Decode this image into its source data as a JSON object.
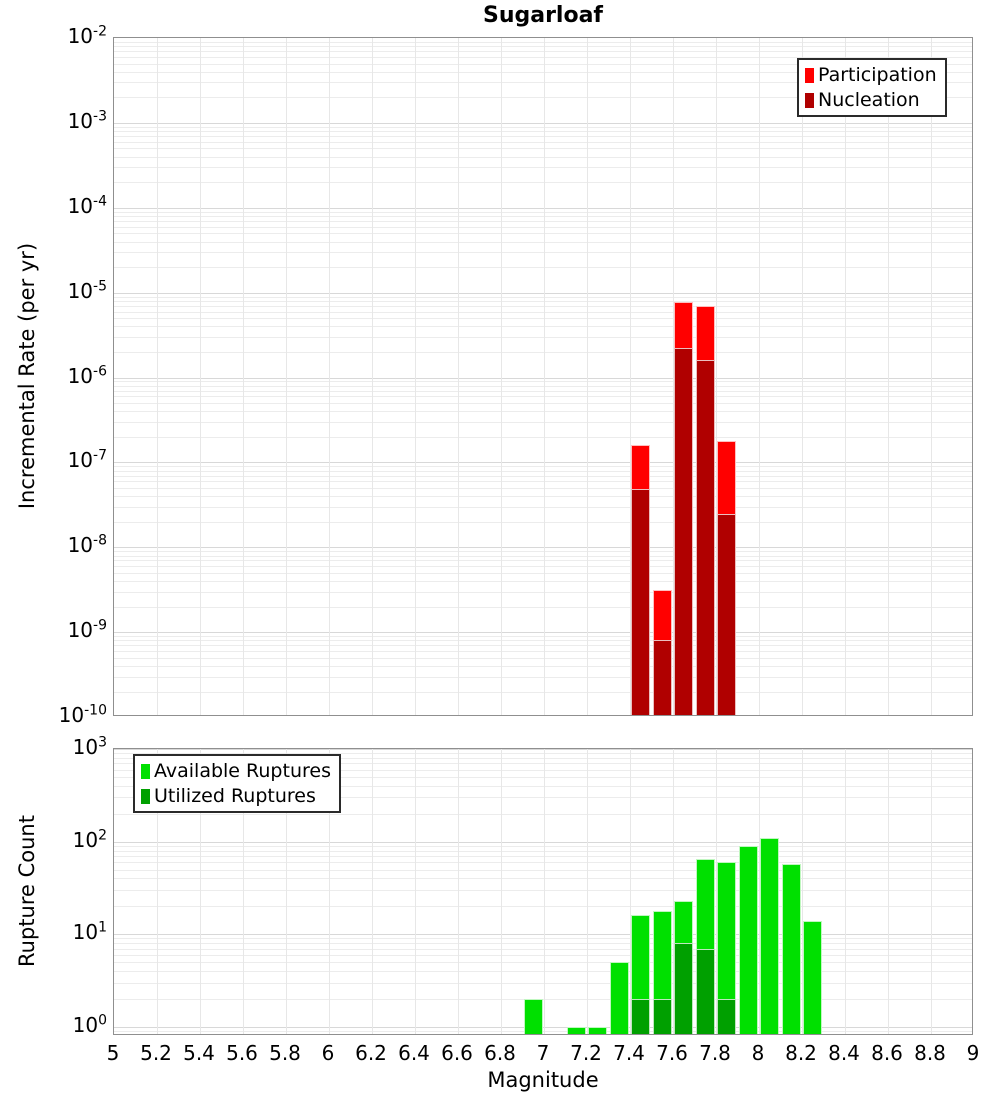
{
  "title": "Sugarloaf",
  "x_axis": {
    "label": "Magnitude",
    "min": 5,
    "max": 9,
    "tick_labels": [
      "5",
      "5.2",
      "5.4",
      "5.6",
      "5.8",
      "6",
      "6.2",
      "6.4",
      "6.6",
      "6.8",
      "7",
      "7.2",
      "7.4",
      "7.6",
      "7.8",
      "8",
      "8.2",
      "8.4",
      "8.6",
      "8.8",
      "9"
    ],
    "gridline_step": 0.2
  },
  "chart_data": [
    {
      "type": "bar",
      "title": "Sugarloaf",
      "xlabel": "Magnitude",
      "ylabel": "Incremental Rate (per yr)",
      "y_scale": "log",
      "ylim": [
        1e-10,
        0.01
      ],
      "y_tick_exponents": [
        -2,
        -3,
        -4,
        -5,
        -6,
        -7,
        -8,
        -9,
        -10
      ],
      "grid": true,
      "legend_position": "top-right",
      "bin_width": 0.1,
      "categories": [
        7.45,
        7.55,
        7.65,
        7.75,
        7.85
      ],
      "series": [
        {
          "name": "Participation",
          "color": "#ff0000",
          "values": [
            1.6e-07,
            3.1e-09,
            7.7e-06,
            6.9e-06,
            1.8e-07
          ]
        },
        {
          "name": "Nucleation",
          "color": "#b00000",
          "values": [
            4.8e-08,
            8e-10,
            2.2e-06,
            1.6e-06,
            2.5e-08
          ]
        }
      ]
    },
    {
      "type": "bar",
      "title": "",
      "xlabel": "Magnitude",
      "ylabel": "Rupture Count",
      "y_scale": "log",
      "ylim": [
        1,
        1000
      ],
      "y_tick_exponents": [
        3,
        2,
        1,
        0
      ],
      "grid": true,
      "legend_position": "top-left",
      "bin_width": 0.1,
      "categories": [
        6.95,
        7.15,
        7.25,
        7.35,
        7.45,
        7.55,
        7.65,
        7.75,
        7.85,
        7.95,
        8.05,
        8.15,
        8.25
      ],
      "series": [
        {
          "name": "Available Ruptures",
          "color": "#00e000",
          "values": [
            2,
            1,
            1,
            5,
            16,
            18,
            23,
            65,
            60,
            90,
            110,
            58,
            14
          ]
        },
        {
          "name": "Utilized Ruptures",
          "color": "#00a000",
          "values": [
            null,
            null,
            null,
            null,
            2,
            2,
            8,
            7,
            2,
            null,
            null,
            null,
            null
          ]
        }
      ]
    }
  ]
}
